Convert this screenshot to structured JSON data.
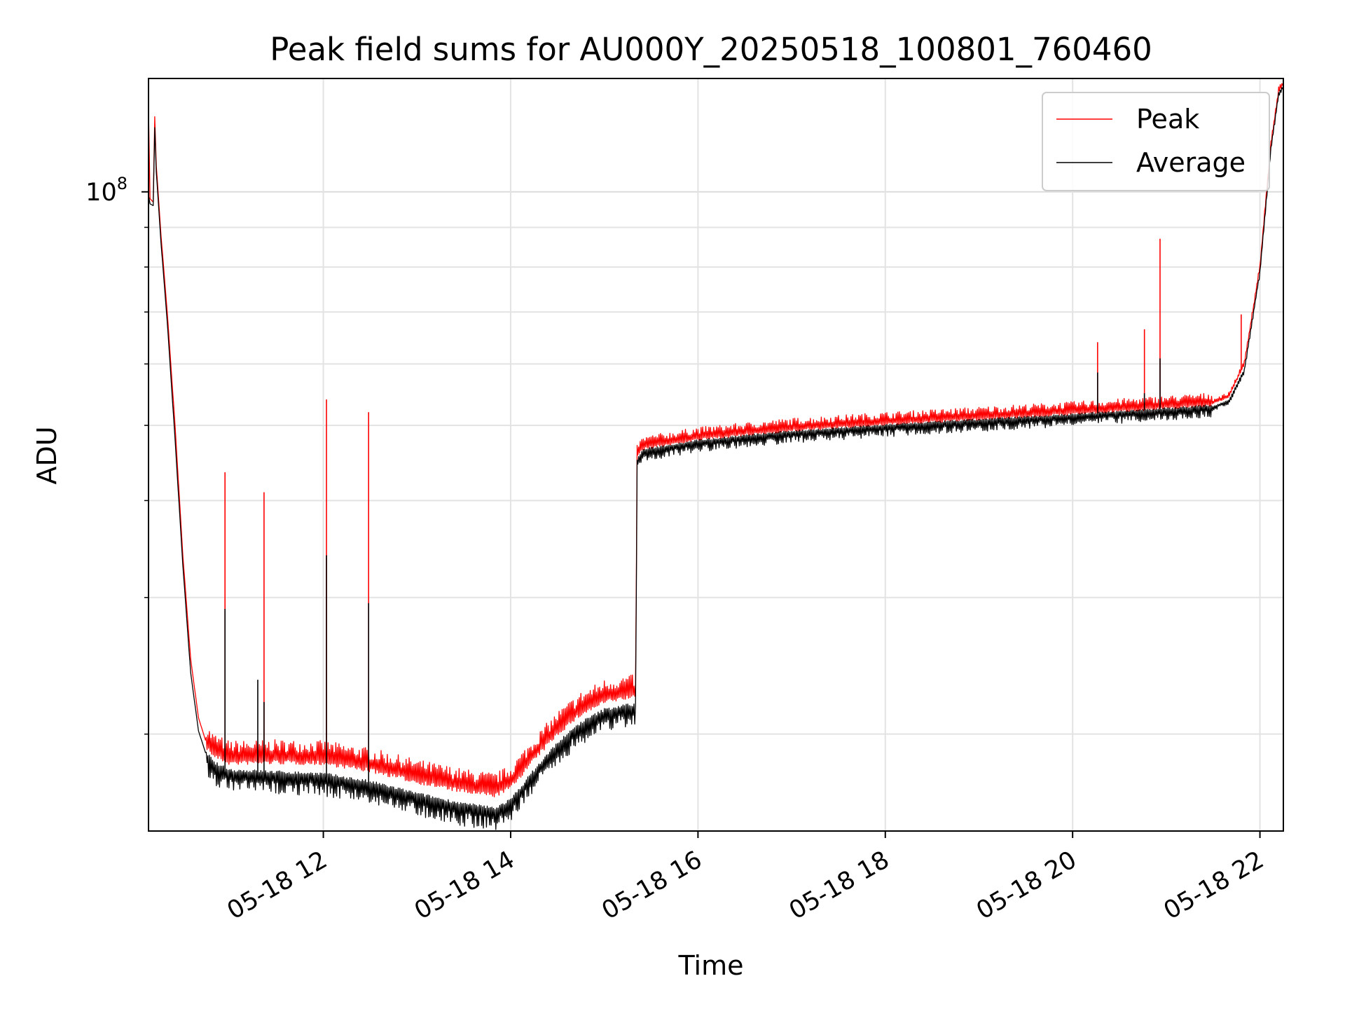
{
  "chart_data": {
    "type": "line",
    "title": "Peak field sums for AU000Y_20250518_100801_760460",
    "xlabel": "Time",
    "ylabel": "ADU",
    "yscale": "log",
    "xlim": [
      "05-18 10:08",
      "05-18 22:15"
    ],
    "ylim": [
      15000000,
      140000000
    ],
    "grid": true,
    "legend_position": "upper right",
    "x_ticks": [
      "05-18 12",
      "05-18 14",
      "05-18 16",
      "05-18 18",
      "05-18 20",
      "05-18 22"
    ],
    "y_major_ticks": [
      {
        "value": 100000000,
        "base": "10",
        "exp": "8"
      }
    ],
    "y_minor_ticks": [
      20000000,
      30000000,
      40000000,
      50000000,
      60000000,
      70000000,
      80000000,
      90000000
    ],
    "series": [
      {
        "name": "Peak",
        "color": "#ff0000",
        "points": [
          [
            "05-18 10:08",
            128000000
          ],
          [
            "05-18 10:09",
            98000000
          ],
          [
            "05-18 10:11",
            97000000
          ],
          [
            "05-18 10:12",
            125000000
          ],
          [
            "05-18 10:13",
            108000000
          ],
          [
            "05-18 10:16",
            88000000
          ],
          [
            "05-18 10:20",
            70000000
          ],
          [
            "05-18 10:25",
            50000000
          ],
          [
            "05-18 10:30",
            34000000
          ],
          [
            "05-18 10:35",
            25000000
          ],
          [
            "05-18 10:40",
            21000000
          ],
          [
            "05-18 10:45",
            19500000
          ],
          [
            "05-18 10:50",
            19000000
          ],
          [
            "05-18 10:55",
            18800000
          ],
          [
            "05-18 11:00",
            18600000
          ],
          [
            "05-18 11:30",
            18650000
          ],
          [
            "05-18 12:00",
            18600000
          ],
          [
            "05-18 12:30",
            18200000
          ],
          [
            "05-18 13:00",
            17600000
          ],
          [
            "05-18 13:30",
            17100000
          ],
          [
            "05-18 13:50",
            16900000
          ],
          [
            "05-18 14:00",
            17300000
          ],
          [
            "05-18 14:15",
            18800000
          ],
          [
            "05-18 14:30",
            20300000
          ],
          [
            "05-18 14:45",
            21500000
          ],
          [
            "05-18 15:00",
            22300000
          ],
          [
            "05-18 15:15",
            22600000
          ],
          [
            "05-18 15:20",
            22600000
          ],
          [
            "05-18 15:21",
            46000000
          ],
          [
            "05-18 15:25",
            47000000
          ],
          [
            "05-18 16:00",
            48300000
          ],
          [
            "05-18 17:00",
            49600000
          ],
          [
            "05-18 18:00",
            50500000
          ],
          [
            "05-18 19:00",
            51300000
          ],
          [
            "05-18 20:00",
            52100000
          ],
          [
            "05-18 21:00",
            53000000
          ],
          [
            "05-18 21:30",
            53500000
          ],
          [
            "05-18 21:40",
            54500000
          ],
          [
            "05-18 21:50",
            60000000
          ],
          [
            "05-18 22:00",
            80000000
          ],
          [
            "05-18 22:07",
            115000000
          ],
          [
            "05-18 22:12",
            135000000
          ],
          [
            "05-18 22:15",
            138000000
          ]
        ],
        "spikes": [
          [
            "05-18 10:57",
            43500000
          ],
          [
            "05-18 11:22",
            41000000
          ],
          [
            "05-18 12:02",
            54000000
          ],
          [
            "05-18 12:29",
            52000000
          ],
          [
            "05-18 20:16",
            64000000
          ],
          [
            "05-18 20:46",
            66500000
          ],
          [
            "05-18 20:56",
            87000000
          ],
          [
            "05-18 21:48",
            69500000
          ]
        ]
      },
      {
        "name": "Average",
        "color": "#000000",
        "points": [
          [
            "05-18 10:08",
            99000000
          ],
          [
            "05-18 10:09",
            96500000
          ],
          [
            "05-18 10:11",
            96000000
          ],
          [
            "05-18 10:12",
            121000000
          ],
          [
            "05-18 10:13",
            106000000
          ],
          [
            "05-18 10:16",
            86000000
          ],
          [
            "05-18 10:20",
            68000000
          ],
          [
            "05-18 10:25",
            48000000
          ],
          [
            "05-18 10:30",
            33000000
          ],
          [
            "05-18 10:35",
            24000000
          ],
          [
            "05-18 10:40",
            20200000
          ],
          [
            "05-18 10:45",
            18800000
          ],
          [
            "05-18 10:50",
            18200000
          ],
          [
            "05-18 10:55",
            18000000
          ],
          [
            "05-18 11:00",
            17800000
          ],
          [
            "05-18 11:30",
            17700000
          ],
          [
            "05-18 12:00",
            17600000
          ],
          [
            "05-18 12:30",
            17200000
          ],
          [
            "05-18 13:00",
            16600000
          ],
          [
            "05-18 13:30",
            16100000
          ],
          [
            "05-18 13:50",
            15900000
          ],
          [
            "05-18 14:00",
            16300000
          ],
          [
            "05-18 14:15",
            17800000
          ],
          [
            "05-18 14:30",
            19300000
          ],
          [
            "05-18 14:45",
            20500000
          ],
          [
            "05-18 15:00",
            21300000
          ],
          [
            "05-18 15:15",
            21600000
          ],
          [
            "05-18 15:20",
            21600000
          ],
          [
            "05-18 15:21",
            45000000
          ],
          [
            "05-18 15:25",
            46300000
          ],
          [
            "05-18 16:00",
            47600000
          ],
          [
            "05-18 17:00",
            48900000
          ],
          [
            "05-18 18:00",
            49800000
          ],
          [
            "05-18 19:00",
            50600000
          ],
          [
            "05-18 20:00",
            51400000
          ],
          [
            "05-18 21:00",
            52300000
          ],
          [
            "05-18 21:30",
            52800000
          ],
          [
            "05-18 21:40",
            53800000
          ],
          [
            "05-18 21:50",
            59000000
          ],
          [
            "05-18 22:00",
            79000000
          ],
          [
            "05-18 22:07",
            114000000
          ],
          [
            "05-18 22:12",
            134000000
          ],
          [
            "05-18 22:15",
            137000000
          ]
        ],
        "spikes": [
          [
            "05-18 10:57",
            29000000
          ],
          [
            "05-18 11:18",
            23500000
          ],
          [
            "05-18 11:22",
            22000000
          ],
          [
            "05-18 12:02",
            34000000
          ],
          [
            "05-18 12:29",
            29500000
          ],
          [
            "05-18 20:16",
            58500000
          ],
          [
            "05-18 20:46",
            55000000
          ],
          [
            "05-18 20:56",
            61000000
          ],
          [
            "05-18 21:48",
            58000000
          ]
        ]
      }
    ]
  }
}
